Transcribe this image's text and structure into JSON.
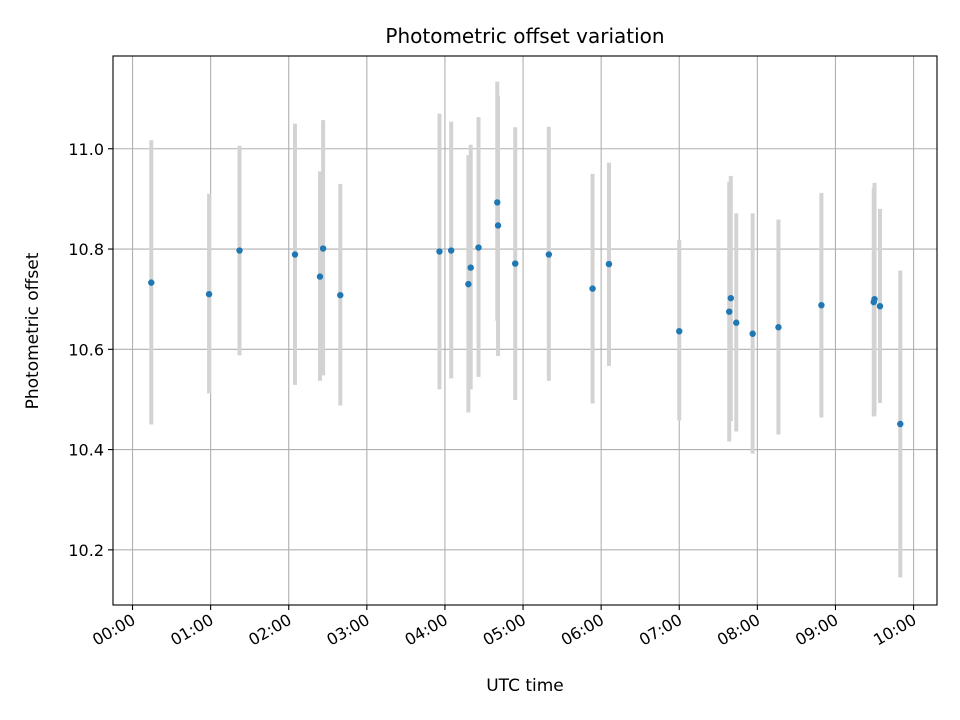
{
  "chart_data": {
    "type": "scatter",
    "title": "Photometric offset variation",
    "xlabel": "UTC time",
    "ylabel": "Photometric offset",
    "x_unit": "hours UTC",
    "xlim": [
      -0.25,
      10.3
    ],
    "ylim": [
      10.09,
      11.185
    ],
    "x_ticks": [
      0,
      1,
      2,
      3,
      4,
      5,
      6,
      7,
      8,
      9,
      10
    ],
    "x_tick_labels": [
      "00:00",
      "01:00",
      "02:00",
      "03:00",
      "04:00",
      "05:00",
      "06:00",
      "07:00",
      "08:00",
      "09:00",
      "10:00"
    ],
    "y_ticks": [
      10.2,
      10.4,
      10.6,
      10.8,
      11.0
    ],
    "y_tick_labels": [
      "10.2",
      "10.4",
      "10.6",
      "10.8",
      "11.0"
    ],
    "grid": true,
    "colors": {
      "point": "#1f77b4",
      "errorbar": "#d3d3d3",
      "grid": "#b0b0b0"
    },
    "points": [
      {
        "x": 0.24,
        "y": 10.733,
        "lo": 10.45,
        "hi": 11.017
      },
      {
        "x": 0.98,
        "y": 10.71,
        "lo": 10.512,
        "hi": 10.91
      },
      {
        "x": 1.37,
        "y": 10.797,
        "lo": 10.588,
        "hi": 11.006
      },
      {
        "x": 2.08,
        "y": 10.789,
        "lo": 10.529,
        "hi": 11.05
      },
      {
        "x": 2.4,
        "y": 10.745,
        "lo": 10.537,
        "hi": 10.955
      },
      {
        "x": 2.44,
        "y": 10.801,
        "lo": 10.548,
        "hi": 11.057
      },
      {
        "x": 2.66,
        "y": 10.708,
        "lo": 10.488,
        "hi": 10.93
      },
      {
        "x": 3.93,
        "y": 10.795,
        "lo": 10.52,
        "hi": 11.07
      },
      {
        "x": 4.08,
        "y": 10.797,
        "lo": 10.542,
        "hi": 11.054
      },
      {
        "x": 4.3,
        "y": 10.73,
        "lo": 10.474,
        "hi": 10.987
      },
      {
        "x": 4.33,
        "y": 10.763,
        "lo": 10.52,
        "hi": 11.008
      },
      {
        "x": 4.43,
        "y": 10.803,
        "lo": 10.545,
        "hi": 11.063
      },
      {
        "x": 4.67,
        "y": 10.893,
        "lo": 10.657,
        "hi": 11.134
      },
      {
        "x": 4.68,
        "y": 10.847,
        "lo": 10.587,
        "hi": 11.106
      },
      {
        "x": 4.9,
        "y": 10.771,
        "lo": 10.499,
        "hi": 11.043
      },
      {
        "x": 5.33,
        "y": 10.789,
        "lo": 10.537,
        "hi": 11.044
      },
      {
        "x": 5.89,
        "y": 10.721,
        "lo": 10.492,
        "hi": 10.95
      },
      {
        "x": 6.1,
        "y": 10.77,
        "lo": 10.567,
        "hi": 10.972
      },
      {
        "x": 7.0,
        "y": 10.636,
        "lo": 10.458,
        "hi": 10.818
      },
      {
        "x": 7.64,
        "y": 10.675,
        "lo": 10.416,
        "hi": 10.934
      },
      {
        "x": 7.66,
        "y": 10.702,
        "lo": 10.457,
        "hi": 10.946
      },
      {
        "x": 7.73,
        "y": 10.653,
        "lo": 10.436,
        "hi": 10.871
      },
      {
        "x": 7.94,
        "y": 10.631,
        "lo": 10.392,
        "hi": 10.871
      },
      {
        "x": 8.27,
        "y": 10.644,
        "lo": 10.43,
        "hi": 10.859
      },
      {
        "x": 8.82,
        "y": 10.688,
        "lo": 10.464,
        "hi": 10.912
      },
      {
        "x": 9.49,
        "y": 10.694,
        "lo": 10.466,
        "hi": 10.922
      },
      {
        "x": 9.5,
        "y": 10.7,
        "lo": 10.468,
        "hi": 10.932
      },
      {
        "x": 9.57,
        "y": 10.686,
        "lo": 10.493,
        "hi": 10.88
      },
      {
        "x": 9.83,
        "y": 10.451,
        "lo": 10.145,
        "hi": 10.757
      }
    ]
  }
}
